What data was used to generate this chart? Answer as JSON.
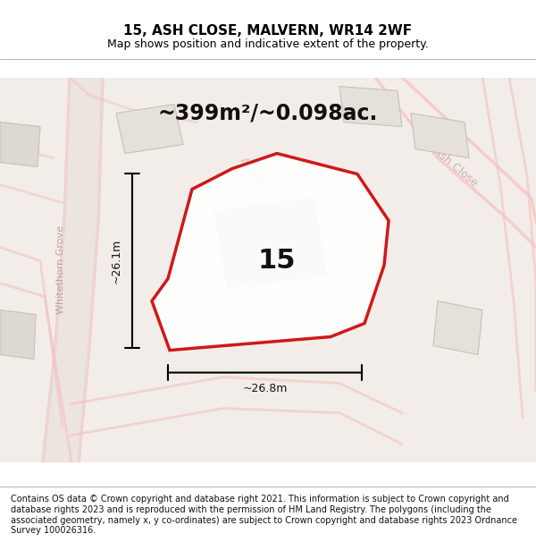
{
  "title": "15, ASH CLOSE, MALVERN, WR14 2WF",
  "subtitle": "Map shows position and indicative extent of the property.",
  "area_text": "~399m²/~0.098ac.",
  "label_number": "15",
  "dim_width": "~26.8m",
  "dim_height": "~26.1m",
  "footer": "Contains OS data © Crown copyright and database right 2021. This information is subject to Crown copyright and database rights 2023 and is reproduced with the permission of HM Land Registry. The polygons (including the associated geometry, namely x, y co-ordinates) are subject to Crown copyright and database rights 2023 Ordnance Survey 100026316.",
  "bg_color": "#f5f0eb",
  "map_bg": "#f5f0eb",
  "road_color_light": "#f5c0c0",
  "road_color_pink": "#f5c0c0",
  "plot_outline_color": "#cc0000",
  "plot_fill_color": "#ffffff",
  "building_fill": "#e0e0e0",
  "title_fontsize": 11,
  "subtitle_fontsize": 9,
  "area_fontsize": 17,
  "label_fontsize": 22,
  "footer_fontsize": 7
}
